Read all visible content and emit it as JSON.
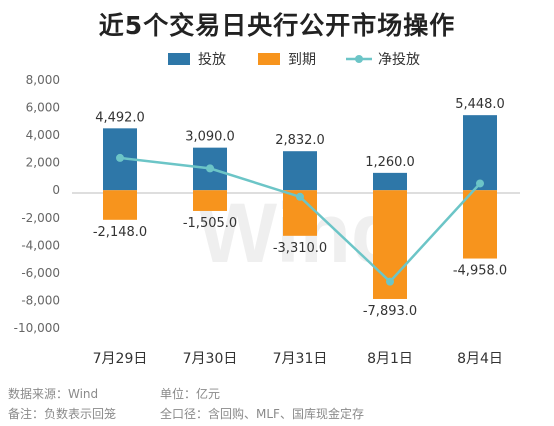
{
  "chart_data": {
    "type": "bar",
    "title": "近5个交易日央行公开市场操作",
    "categories": [
      "7月29日",
      "7月30日",
      "7月31日",
      "8月1日",
      "8月4日"
    ],
    "series": [
      {
        "name": "投放",
        "kind": "bar",
        "color": "#2e77a8",
        "values": [
          4492.0,
          3090.0,
          2832.0,
          1260.0,
          5448.0
        ],
        "labels": [
          "4,492.0",
          "3,090.0",
          "2,832.0",
          "1,260.0",
          "5,448.0"
        ]
      },
      {
        "name": "到期",
        "kind": "bar",
        "color": "#f7941d",
        "values": [
          -2148.0,
          -1505.0,
          -3310.0,
          -7893.0,
          -4958.0
        ],
        "labels": [
          "-2,148.0",
          "-1,505.0",
          "-3,310.0",
          "-7,893.0",
          "-4,958.0"
        ]
      },
      {
        "name": "净投放",
        "kind": "line",
        "color": "#6cc5c7",
        "values": [
          2344.0,
          1585.0,
          -478.0,
          -6633.0,
          490.0
        ]
      }
    ],
    "ylim": [
      -10000,
      8000
    ],
    "yticks": [
      8000,
      6000,
      4000,
      2000,
      0,
      -2000,
      -4000,
      -6000,
      -8000,
      -10000
    ],
    "ytick_labels": [
      "8,000",
      "6,000",
      "4,000",
      "2,000",
      "0",
      "-2,000",
      "-4,000",
      "-6,000",
      "-8,000",
      "-10,000"
    ],
    "legend_position": "top",
    "grid": false,
    "watermark": "Wind"
  },
  "footer": {
    "source": "数据来源：Wind",
    "unit": "单位：亿元",
    "note": "备注：负数表示回笼",
    "scope": "全口径：含回购、MLF、国库现金定存"
  }
}
